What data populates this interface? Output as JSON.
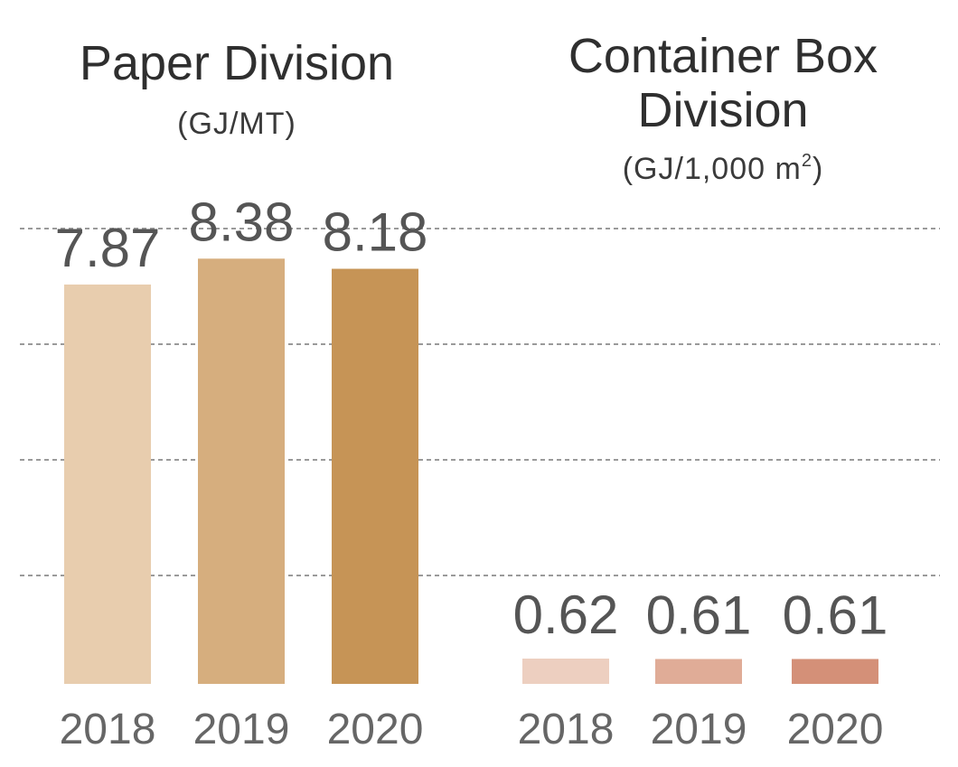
{
  "chart_data": [
    {
      "type": "bar",
      "title": "Paper Division",
      "unit": "(GJ/MT)",
      "categories": [
        "2018",
        "2019",
        "2020"
      ],
      "values": [
        7.87,
        8.38,
        8.18
      ],
      "value_labels": [
        "7.87",
        "8.38",
        "8.18"
      ],
      "colors": [
        "#e8cdae",
        "#d6ae7e",
        "#c69456"
      ],
      "ylim": [
        0,
        9.4
      ],
      "grid": true
    },
    {
      "type": "bar",
      "title_lines": [
        "Container Box",
        "Division"
      ],
      "unit_main": "(GJ/1,000 m",
      "unit_sup": "2",
      "unit_close": ")",
      "categories": [
        "2018",
        "2019",
        "2020"
      ],
      "values": [
        0.62,
        0.61,
        0.61
      ],
      "value_labels": [
        "0.62",
        "0.61",
        "0.61"
      ],
      "colors": [
        "#edcfc0",
        "#e0ac97",
        "#d49078"
      ],
      "ylim": [
        0,
        0.62
      ],
      "grid": true
    }
  ]
}
